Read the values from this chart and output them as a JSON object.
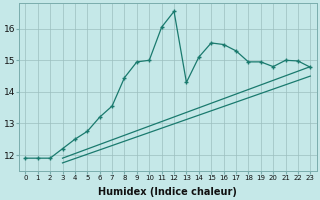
{
  "background_color": "#c5e8e8",
  "grid_color": "#9cbfbf",
  "line_color": "#1a7a6e",
  "xlabel": "Humidex (Indice chaleur)",
  "xlim": [
    -0.5,
    23.5
  ],
  "ylim": [
    11.5,
    16.8
  ],
  "yticks": [
    12,
    13,
    14,
    15,
    16
  ],
  "xticks": [
    0,
    1,
    2,
    3,
    4,
    5,
    6,
    7,
    8,
    9,
    10,
    11,
    12,
    13,
    14,
    15,
    16,
    17,
    18,
    19,
    20,
    21,
    22,
    23
  ],
  "line1_x": [
    0,
    1,
    2,
    3,
    4,
    5,
    6,
    7,
    8,
    9,
    10,
    11,
    12,
    13,
    14,
    15,
    16,
    17,
    18,
    19,
    20,
    21,
    22,
    23
  ],
  "line1_y": [
    11.9,
    11.9,
    11.9,
    12.2,
    12.5,
    12.75,
    13.2,
    13.55,
    14.45,
    14.95,
    15.0,
    16.05,
    16.55,
    14.3,
    15.1,
    15.55,
    15.5,
    15.3,
    14.95,
    14.95,
    14.8,
    15.0,
    14.98,
    14.78
  ],
  "line2_x": [
    3,
    23
  ],
  "line2_y": [
    11.9,
    14.8
  ],
  "line3_x": [
    3,
    23
  ],
  "line3_y": [
    11.75,
    14.5
  ]
}
